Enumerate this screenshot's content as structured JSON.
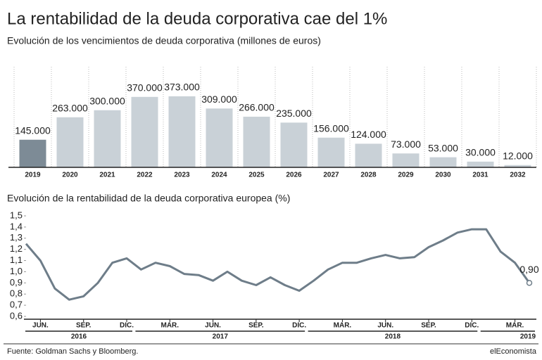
{
  "title": "La rentabilidad de la deuda corporativa cae del 1%",
  "chart_data": [
    {
      "type": "bar",
      "title": "Evolución de los vencimientos de deuda corporativa (millones de euros)",
      "categories": [
        "2019",
        "2020",
        "2021",
        "2022",
        "2023",
        "2024",
        "2025",
        "2026",
        "2027",
        "2028",
        "2029",
        "2030",
        "2031",
        "2032"
      ],
      "values": [
        145000,
        263000,
        300000,
        370000,
        373000,
        309000,
        266000,
        235000,
        156000,
        124000,
        73000,
        53000,
        30000,
        12000
      ],
      "value_labels": [
        "145.000",
        "263.000",
        "300.000",
        "370.000",
        "373.000",
        "309.000",
        "266.000",
        "235.000",
        "156.000",
        "124.000",
        "73.000",
        "53.000",
        "30.000",
        "12.000"
      ],
      "colors": [
        "#7d8b96",
        "#c9d1d7",
        "#c9d1d7",
        "#c9d1d7",
        "#c9d1d7",
        "#c9d1d7",
        "#c9d1d7",
        "#c9d1d7",
        "#c9d1d7",
        "#c9d1d7",
        "#c9d1d7",
        "#c9d1d7",
        "#c9d1d7",
        "#c9d1d7"
      ],
      "grid": true
    },
    {
      "type": "line",
      "title": "Evolución de la rentabilidad de la deuda corporativa europea (%)",
      "x": [
        "2016-05",
        "2016-06",
        "2016-07",
        "2016-08",
        "2016-09",
        "2016-10",
        "2016-11",
        "2016-12",
        "2017-01",
        "2017-02",
        "2017-03",
        "2017-04",
        "2017-05",
        "2017-06",
        "2017-07",
        "2017-08",
        "2017-09",
        "2017-10",
        "2017-11",
        "2017-12",
        "2018-01",
        "2018-02",
        "2018-03",
        "2018-04",
        "2018-05",
        "2018-06",
        "2018-07",
        "2018-08",
        "2018-09",
        "2018-10",
        "2018-11",
        "2018-12",
        "2019-01",
        "2019-02",
        "2019-03",
        "2019-04"
      ],
      "values": [
        1.25,
        1.1,
        0.85,
        0.75,
        0.78,
        0.9,
        1.08,
        1.12,
        1.02,
        1.08,
        1.05,
        0.98,
        0.97,
        0.92,
        1.0,
        0.92,
        0.88,
        0.95,
        0.88,
        0.83,
        0.92,
        1.02,
        1.08,
        1.08,
        1.12,
        1.15,
        1.12,
        1.13,
        1.22,
        1.28,
        1.35,
        1.38,
        1.38,
        1.18,
        1.08,
        0.9
      ],
      "value_labels": [
        null,
        null,
        null,
        null,
        null,
        null,
        null,
        null,
        null,
        null,
        null,
        null,
        null,
        null,
        null,
        null,
        null,
        null,
        null,
        null,
        null,
        null,
        null,
        null,
        null,
        null,
        null,
        null,
        null,
        null,
        null,
        null,
        null,
        null,
        null,
        "0,90"
      ],
      "color": "#6e7d89",
      "ylim": [
        0.6,
        1.5
      ],
      "yticks": [
        {
          "value": 0.6,
          "label": "0,6"
        },
        {
          "value": 0.7,
          "label": "0,7"
        },
        {
          "value": 0.8,
          "label": "0,8"
        },
        {
          "value": 0.9,
          "label": "0,9"
        },
        {
          "value": 1.0,
          "label": "1,0"
        },
        {
          "value": 1.1,
          "label": "1,1"
        },
        {
          "value": 1.2,
          "label": "1,2"
        },
        {
          "value": 1.3,
          "label": "1,3"
        },
        {
          "value": 1.4,
          "label": "1,4"
        },
        {
          "value": 1.5,
          "label": "1,5"
        }
      ],
      "xticks": [
        {
          "value": "2016-06",
          "label": "JUN."
        },
        {
          "value": "2016-09",
          "label": "SEP."
        },
        {
          "value": "2016-12",
          "label": "DIC."
        },
        {
          "value": "2017-03",
          "label": "MAR."
        },
        {
          "value": "2017-06",
          "label": "JUN."
        },
        {
          "value": "2017-09",
          "label": "SEP."
        },
        {
          "value": "2017-12",
          "label": "DIC."
        },
        {
          "value": "2018-03",
          "label": "MAR."
        },
        {
          "value": "2018-06",
          "label": "JUN."
        },
        {
          "value": "2018-09",
          "label": "SEP."
        },
        {
          "value": "2018-12",
          "label": "DIC."
        },
        {
          "value": "2019-03",
          "label": "MAR."
        }
      ],
      "x_groups": [
        {
          "label": "2016",
          "start": "2016-05",
          "end": "2016-12"
        },
        {
          "label": "2017",
          "start": "2017-01",
          "end": "2017-12"
        },
        {
          "label": "2018",
          "start": "2018-01",
          "end": "2018-12"
        },
        {
          "label": "2019",
          "start": "2019-01",
          "end": "2019-04"
        }
      ]
    }
  ],
  "source": "Fuente: Goldman Sachs y Bloomberg.",
  "brand": "elEconomista"
}
